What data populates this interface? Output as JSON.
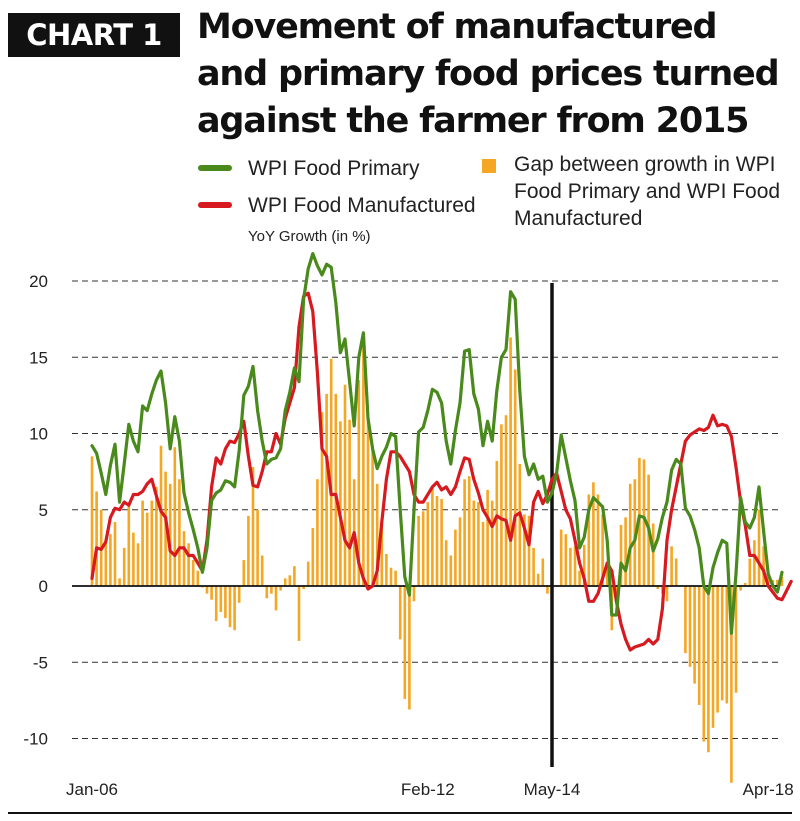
{
  "badge": "CHART 1",
  "title_lines": [
    "Movement of manufactured",
    "and primary food prices turned",
    "against the farmer from 2015"
  ],
  "legend": {
    "primary": "WPI Food Primary",
    "manufactured": "WPI Food Manufactured",
    "gap": [
      "Gap between growth in WPI",
      "Food Primary and WPI Food",
      "Manufactured"
    ]
  },
  "colors": {
    "primary": "#4a8a1c",
    "manufactured": "#d71920",
    "gap": "#f5a623"
  },
  "chart_data": {
    "type": "line",
    "ylabel": "YoY Growth (in %)",
    "ylim": [
      -12,
      22
    ],
    "yticks": [
      20,
      15,
      10,
      5,
      0,
      -5,
      -10
    ],
    "xticklabels": [
      "Jan-06",
      "Feb-12",
      "May-14",
      "Apr-18"
    ],
    "xtick_index": [
      0,
      73,
      100,
      147
    ],
    "vline_index": 100,
    "grid": "horizontal-dashed",
    "x_start": "Jan-06",
    "x_end": "Apr-18",
    "series": [
      {
        "name": "WPI Food Primary",
        "type": "line",
        "values": [
          9.2,
          8.7,
          7.4,
          6.0,
          7.9,
          9.3,
          5.5,
          8.0,
          10.6,
          9.5,
          8.8,
          11.8,
          11.5,
          12.6,
          13.5,
          14.1,
          12.0,
          9.0,
          11.1,
          9.5,
          6.1,
          4.8,
          3.7,
          2.5,
          0.9,
          2.5,
          5.6,
          6.1,
          6.3,
          6.9,
          6.8,
          6.5,
          8.9,
          12.5,
          13.1,
          14.4,
          11.5,
          9.5,
          8.0,
          8.3,
          8.4,
          9.0,
          11.5,
          12.7,
          14.3,
          13.4,
          18.8,
          20.8,
          21.8,
          21.0,
          20.4,
          21.1,
          20.9,
          18.6,
          15.3,
          16.2,
          13.4,
          10.5,
          15.0,
          16.6,
          11.0,
          9.0,
          7.7,
          8.5,
          9.1,
          10.0,
          9.8,
          5.0,
          0.6,
          -0.6,
          5.0,
          10.1,
          10.4,
          11.5,
          12.9,
          12.7,
          12.0,
          9.5,
          8.0,
          10.2,
          12.0,
          15.4,
          15.5,
          12.6,
          11.6,
          9.2,
          10.8,
          9.5,
          12.8,
          15.0,
          15.5,
          19.3,
          18.8,
          12.8,
          8.5,
          7.3,
          8.0,
          7.0,
          7.2,
          5.5,
          6.1,
          7.4,
          9.9,
          8.4,
          6.9,
          5.6,
          2.5,
          3.2,
          5.0,
          5.8,
          5.5,
          5.2,
          3.0,
          -1.9,
          -1.9,
          1.5,
          1.0,
          2.5,
          3.0,
          4.6,
          4.5,
          3.8,
          2.3,
          3.1,
          4.5,
          5.5,
          7.6,
          8.3,
          8.0,
          5.1,
          4.6,
          3.7,
          2.5,
          0.0,
          -0.5,
          1.2,
          2.2,
          3.0,
          2.8,
          -3.1,
          0.8,
          5.8,
          4.2,
          3.8,
          4.5,
          6.5,
          3.6,
          0.8,
          0.0,
          -0.4,
          0.9
        ]
      },
      {
        "name": "WPI Food Manufactured",
        "type": "line",
        "values": [
          0.5,
          2.5,
          2.4,
          2.9,
          4.5,
          5.1,
          5.0,
          5.5,
          5.3,
          6.0,
          6.0,
          6.2,
          6.7,
          7.0,
          5.9,
          4.9,
          4.5,
          2.3,
          2.0,
          2.5,
          2.5,
          2.0,
          2.0,
          1.5,
          1.0,
          3.0,
          6.5,
          8.4,
          8.0,
          9.0,
          9.5,
          9.4,
          10.0,
          10.8,
          8.5,
          6.6,
          6.5,
          7.5,
          8.8,
          8.8,
          10.0,
          9.3,
          11.0,
          12.0,
          13.0,
          17.0,
          19.0,
          19.2,
          18.0,
          14.0,
          9.0,
          8.5,
          6.0,
          6.0,
          4.5,
          3.0,
          2.5,
          3.5,
          1.5,
          0.5,
          -0.2,
          0.0,
          1.0,
          4.2,
          7.0,
          8.8,
          8.8,
          8.5,
          8.0,
          7.5,
          6.0,
          5.5,
          5.5,
          6.0,
          6.5,
          6.8,
          6.3,
          6.5,
          6.0,
          6.5,
          7.5,
          8.4,
          8.3,
          7.0,
          6.1,
          5.0,
          4.5,
          3.9,
          4.6,
          4.4,
          4.3,
          3.0,
          4.6,
          4.8,
          3.8,
          2.7,
          5.5,
          6.2,
          5.4,
          6.0,
          7.0,
          7.4,
          6.2,
          5.0,
          4.4,
          3.0,
          1.5,
          0.5,
          -1.0,
          -1.0,
          -0.5,
          0.5,
          1.5,
          1.0,
          -1.0,
          -2.5,
          -3.5,
          -4.2,
          -4.0,
          -3.9,
          -3.8,
          -3.5,
          -3.8,
          -3.5,
          -1.5,
          3.0,
          5.0,
          6.5,
          8.0,
          9.5,
          9.9,
          10.1,
          10.3,
          10.2,
          10.4,
          11.2,
          10.5,
          10.6,
          10.5,
          9.8,
          7.8,
          5.5,
          4.0,
          2.0,
          2.0,
          1.5,
          1.0,
          0.0,
          -0.4,
          -0.8,
          -0.9,
          -0.3,
          0.3
        ]
      },
      {
        "name": "Gap between growth in WPI Food Primary and WPI Food Manufactured",
        "type": "bar",
        "values": [
          8.5,
          6.2,
          5.0,
          3.1,
          3.4,
          4.2,
          0.5,
          2.5,
          5.3,
          3.5,
          2.8,
          5.6,
          4.8,
          5.6,
          6.5,
          9.2,
          7.5,
          6.7,
          9.1,
          7.0,
          3.6,
          2.8,
          1.7,
          1.0,
          -0.1,
          -0.5,
          -0.9,
          -2.3,
          -1.7,
          -2.1,
          -2.7,
          -2.9,
          -1.1,
          1.7,
          4.6,
          7.8,
          5.0,
          2.0,
          -0.8,
          -0.5,
          -1.6,
          -0.3,
          0.5,
          0.7,
          1.3,
          -3.6,
          -0.2,
          1.6,
          3.8,
          7.0,
          11.4,
          12.6,
          14.9,
          12.6,
          10.8,
          13.2,
          10.9,
          7.0,
          13.5,
          16.1,
          11.2,
          9.0,
          6.7,
          4.3,
          2.1,
          1.2,
          1.0,
          -3.5,
          -7.4,
          -8.1,
          -1.0,
          4.6,
          4.9,
          5.5,
          6.4,
          5.9,
          5.7,
          3.0,
          2.0,
          3.7,
          4.5,
          7.0,
          7.2,
          5.6,
          5.5,
          4.2,
          6.3,
          5.6,
          8.2,
          10.6,
          11.2,
          16.3,
          14.2,
          8.0,
          4.7,
          4.6,
          2.5,
          0.8,
          1.8,
          -0.5,
          -0.9,
          0.0,
          3.7,
          3.4,
          2.5,
          2.6,
          1.0,
          2.7,
          6.0,
          6.8,
          6.0,
          4.7,
          1.5,
          -2.9,
          -0.9,
          4.0,
          4.5,
          6.7,
          7.0,
          8.4,
          8.3,
          7.3,
          4.1,
          -0.2,
          -0.5,
          -1.0,
          2.6,
          1.8,
          0.0,
          -4.4,
          -5.3,
          -6.4,
          -7.8,
          -10.2,
          -10.9,
          -9.3,
          -8.3,
          -7.5,
          -7.7,
          -12.9,
          -7.0,
          -0.3,
          0.2,
          1.8,
          3.0,
          5.0,
          2.6,
          0.8,
          0.4,
          0.4,
          0.6
        ]
      }
    ]
  }
}
